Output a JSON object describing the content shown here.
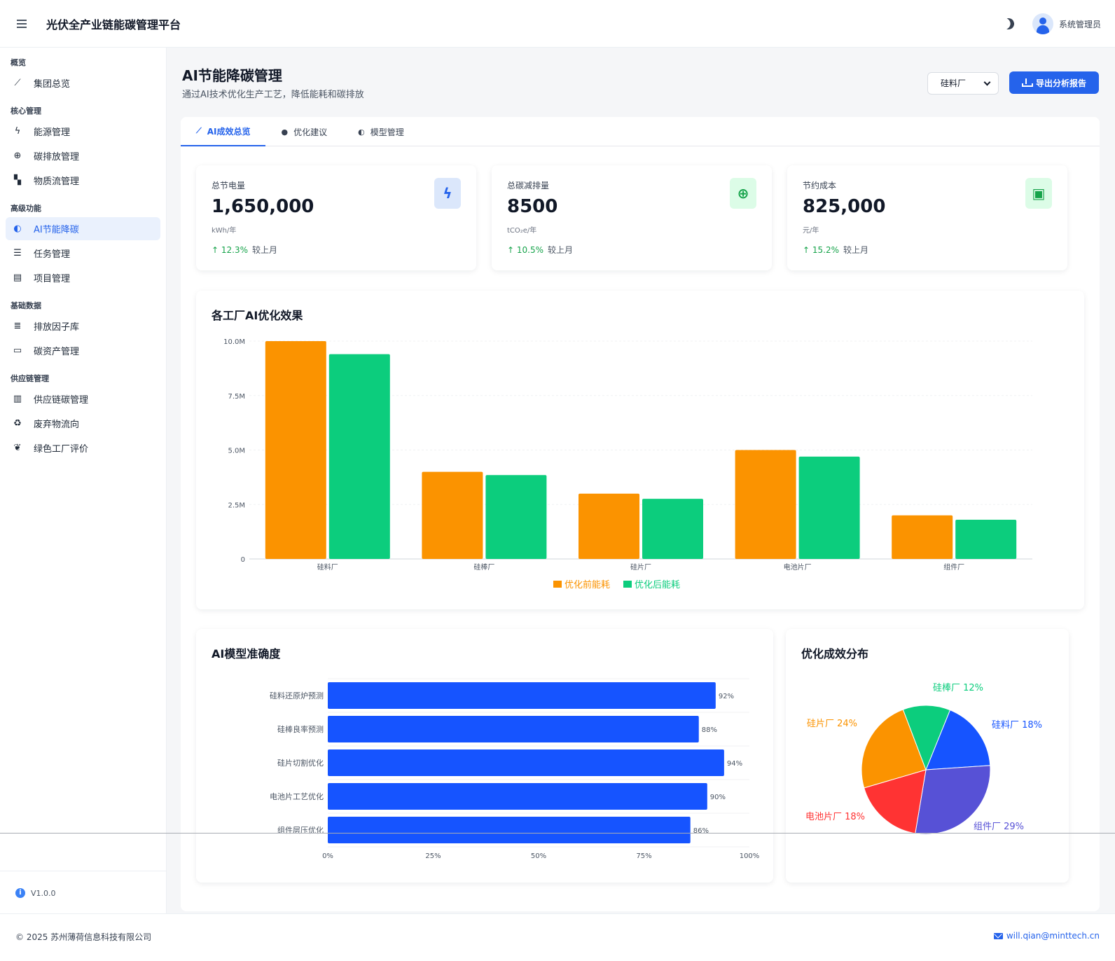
{
  "header": {
    "title": "光伏全产业链能碳管理平台",
    "user": "系统管理员",
    "menu_icon": "menu-icon",
    "theme_icon": "moon-icon"
  },
  "sidebar": {
    "groups": [
      {
        "label": "概览",
        "items": [
          {
            "label": "集团总览",
            "icon": "chart-line-icon",
            "glyph": "⟋"
          }
        ]
      },
      {
        "label": "核心管理",
        "items": [
          {
            "label": "能源管理",
            "icon": "bolt-icon",
            "glyph": "ϟ"
          },
          {
            "label": "碳排放管理",
            "icon": "globe-icon",
            "glyph": "⊕"
          },
          {
            "label": "物质流管理",
            "icon": "boxes-icon",
            "glyph": "▚"
          }
        ]
      },
      {
        "label": "高级功能",
        "items": [
          {
            "label": "AI节能降碳",
            "icon": "brain-icon",
            "glyph": "◐",
            "active": true
          },
          {
            "label": "任务管理",
            "icon": "list-check-icon",
            "glyph": "☰"
          },
          {
            "label": "项目管理",
            "icon": "file-icon",
            "glyph": "▤"
          }
        ]
      },
      {
        "label": "基础数据",
        "items": [
          {
            "label": "排放因子库",
            "icon": "database-icon",
            "glyph": "≣"
          },
          {
            "label": "碳资产管理",
            "icon": "money-icon",
            "glyph": "▭"
          }
        ]
      },
      {
        "label": "供应链管理",
        "items": [
          {
            "label": "供应链碳管理",
            "icon": "building-icon",
            "glyph": "▥"
          },
          {
            "label": "废弃物流向",
            "icon": "recycle-icon",
            "glyph": "♻"
          },
          {
            "label": "绿色工厂评价",
            "icon": "leaf-icon",
            "glyph": "❦"
          }
        ]
      }
    ],
    "version": "V1.0.0"
  },
  "page": {
    "title": "AI节能降碳管理",
    "subtitle": "通过AI技术优化生产工艺，降低能耗和碳排放",
    "factory_select": "硅料厂",
    "export_label": "导出分析报告"
  },
  "tabs": [
    {
      "label": "AI成效总览",
      "icon": "chart-line-icon",
      "glyph": "⟋",
      "active": true
    },
    {
      "label": "优化建议",
      "icon": "lightbulb-icon",
      "glyph": "●"
    },
    {
      "label": "模型管理",
      "icon": "brain-icon",
      "glyph": "◐"
    }
  ],
  "kpis": [
    {
      "label": "总节电量",
      "value": "1,650,000",
      "unit": "kWh/年",
      "change": "↑ 12.3%",
      "compare": "较上月",
      "icon": "bolt-icon",
      "glyph": "ϟ",
      "icon_color": "#2563eb",
      "icon_bg": "#dbe7fb"
    },
    {
      "label": "总碳减排量",
      "value": "8500",
      "unit": "tCO₂e/年",
      "change": "↑ 10.5%",
      "compare": "较上月",
      "icon": "globe-icon",
      "glyph": "⊕",
      "icon_color": "#16a34a",
      "icon_bg": "#dcfce7"
    },
    {
      "label": "节约成本",
      "value": "825,000",
      "unit": "元/年",
      "change": "↑ 15.2%",
      "compare": "较上月",
      "icon": "money-icon",
      "glyph": "▣",
      "icon_color": "#16a34a",
      "icon_bg": "#dcfce7"
    }
  ],
  "chart_data": [
    {
      "type": "bar",
      "title": "各工厂AI优化效果",
      "categories": [
        "硅料厂",
        "硅棒厂",
        "硅片厂",
        "电池片厂",
        "组件厂"
      ],
      "series": [
        {
          "name": "优化前能耗",
          "values": [
            10000000,
            4000000,
            3000000,
            5000000,
            2000000
          ],
          "color": "#fb9300"
        },
        {
          "name": "优化后能耗",
          "values": [
            9400000,
            3850000,
            2760000,
            4700000,
            1800000
          ],
          "color": "#0ccd7d"
        }
      ],
      "ylim": [
        0,
        10000000
      ],
      "yticks": [
        "0",
        "2.5M",
        "5.0M",
        "7.5M",
        "10.0M"
      ],
      "legend": "bottom"
    },
    {
      "type": "bar",
      "orientation": "horizontal",
      "title": "AI模型准确度",
      "categories": [
        "硅料还原炉预测",
        "硅棒良率预测",
        "硅片切割优化",
        "电池片工艺优化",
        "组件层压优化"
      ],
      "values": [
        92,
        88,
        94,
        90,
        86
      ],
      "labels": [
        "92%",
        "88%",
        "94%",
        "90%",
        "86%"
      ],
      "xlim": [
        0,
        100
      ],
      "xticks": [
        "0%",
        "25%",
        "50%",
        "75%",
        "100%"
      ],
      "color": "#1654ff"
    },
    {
      "type": "pie",
      "title": "优化成效分布",
      "slices": [
        {
          "name": "硅料厂",
          "value": 18,
          "label": "硅料厂 18%",
          "color": "#1654ff"
        },
        {
          "name": "组件厂",
          "value": 29,
          "label": "组件厂 29%",
          "color": "#5751d6"
        },
        {
          "name": "电池片厂",
          "value": 18,
          "label": "电池片厂 18%",
          "color": "#ff3333"
        },
        {
          "name": "硅片厂",
          "value": 24,
          "label": "硅片厂 24%",
          "color": "#fb9300"
        },
        {
          "name": "硅棒厂",
          "value": 12,
          "label": "硅棒厂 12%",
          "color": "#0ccd7d"
        }
      ]
    }
  ],
  "footer": {
    "copyright": "© 2025 苏州薄荷信息科技有限公司",
    "email": "will.qian@minttech.cn"
  }
}
